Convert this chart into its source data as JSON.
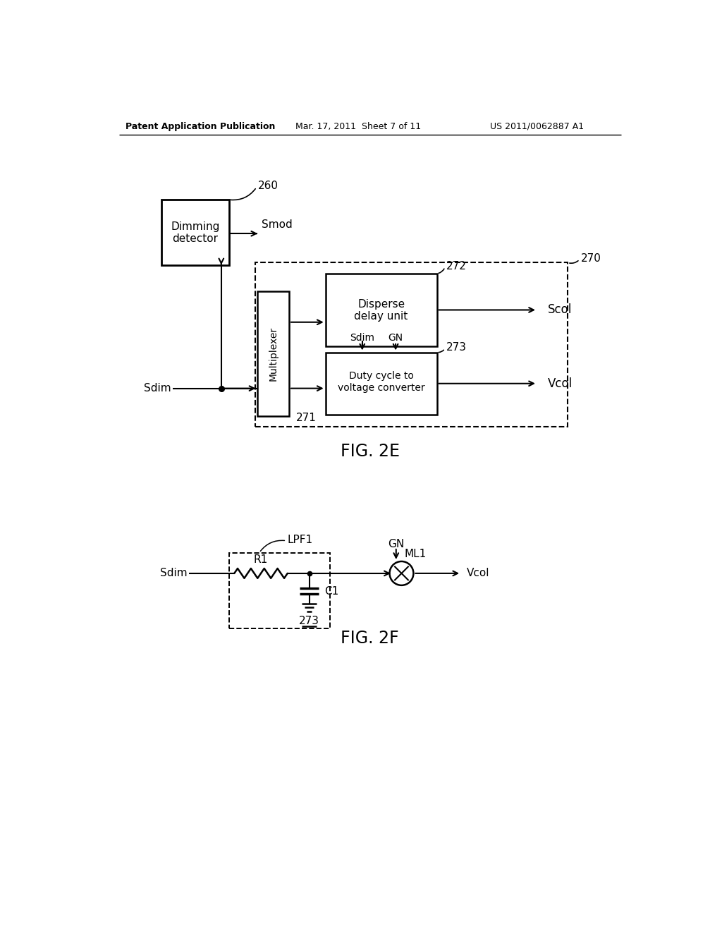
{
  "bg_color": "#ffffff",
  "line_color": "#000000",
  "header_left": "Patent Application Publication",
  "header_mid": "Mar. 17, 2011  Sheet 7 of 11",
  "header_right": "US 2011/0062887 A1",
  "fig2e_label": "FIG. 2E",
  "fig2f_label": "FIG. 2F"
}
